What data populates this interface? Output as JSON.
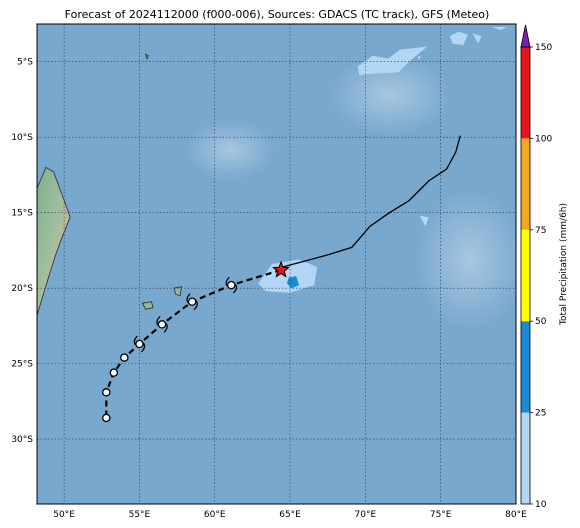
{
  "title": "Forecast of 2024112000 (f000-006), Sources: GDACS (TC track), GFS (Meteo)",
  "map": {
    "lon_range": [
      48.2,
      80.0
    ],
    "lat_range": [
      -34.3,
      -2.5
    ],
    "lon_ticks": [
      {
        "value": 50,
        "label": "50°E"
      },
      {
        "value": 55,
        "label": "55°E"
      },
      {
        "value": 60,
        "label": "60°E"
      },
      {
        "value": 65,
        "label": "65°E"
      },
      {
        "value": 70,
        "label": "70°E"
      },
      {
        "value": 75,
        "label": "75°E"
      },
      {
        "value": 80,
        "label": "80°E"
      }
    ],
    "lat_ticks": [
      {
        "value": -5,
        "label": "5°S"
      },
      {
        "value": -10,
        "label": "10°S"
      },
      {
        "value": -15,
        "label": "15°S"
      },
      {
        "value": -20,
        "label": "20°S"
      },
      {
        "value": -25,
        "label": "25°S"
      },
      {
        "value": -30,
        "label": "30°S"
      }
    ],
    "grid": true,
    "colors": {
      "ocean": "#79a8cf",
      "land": "#8fb79a",
      "track_past": "#000000",
      "track_forecast": "#000000",
      "current_position": "#e8141c"
    }
  },
  "colorbar": {
    "label": "Total Precipitation (mm/6h)",
    "ticks": [
      {
        "value": 10,
        "label": "10"
      },
      {
        "value": 25,
        "label": "25"
      },
      {
        "value": 50,
        "label": "50"
      },
      {
        "value": 75,
        "label": "75"
      },
      {
        "value": 100,
        "label": "100"
      },
      {
        "value": 150,
        "label": "150"
      }
    ],
    "bins": [
      {
        "from": 10,
        "to": 25,
        "color": "#b3d6f5"
      },
      {
        "from": 25,
        "to": 50,
        "color": "#1b8ad6"
      },
      {
        "from": 50,
        "to": 75,
        "color": "#ffff00"
      },
      {
        "from": 75,
        "to": 100,
        "color": "#f5a623"
      },
      {
        "from": 100,
        "to": 150,
        "color": "#e8141c"
      }
    ],
    "extend_color": "#7a1fb8"
  },
  "chart_data": {
    "type": "map",
    "past_track": [
      [
        76.3,
        -9.9
      ],
      [
        76.0,
        -11.0
      ],
      [
        75.4,
        -12.1
      ],
      [
        74.2,
        -12.9
      ],
      [
        72.9,
        -14.2
      ],
      [
        71.6,
        -15.0
      ],
      [
        70.3,
        -15.9
      ],
      [
        69.1,
        -17.3
      ],
      [
        67.5,
        -17.8
      ],
      [
        66.0,
        -18.2
      ],
      [
        64.5,
        -18.6
      ]
    ],
    "current_position": [
      64.4,
      -18.8
    ],
    "forecast_track": [
      [
        64.4,
        -18.8
      ],
      [
        61.1,
        -19.8
      ],
      [
        58.5,
        -20.9
      ],
      [
        56.5,
        -22.4
      ],
      [
        55.0,
        -23.7
      ],
      [
        54.0,
        -24.6
      ],
      [
        53.3,
        -25.6
      ],
      [
        52.8,
        -26.9
      ],
      [
        52.8,
        -28.6
      ]
    ],
    "forecast_symbols": [
      {
        "lon": 61.1,
        "lat": -19.8,
        "symbol": "cyclone"
      },
      {
        "lon": 58.5,
        "lat": -20.9,
        "symbol": "cyclone"
      },
      {
        "lon": 56.5,
        "lat": -22.4,
        "symbol": "cyclone"
      },
      {
        "lon": 55.0,
        "lat": -23.7,
        "symbol": "cyclone"
      },
      {
        "lon": 54.0,
        "lat": -24.6,
        "symbol": "low"
      },
      {
        "lon": 53.3,
        "lat": -25.6,
        "symbol": "low"
      },
      {
        "lon": 52.8,
        "lat": -26.9,
        "symbol": "low"
      },
      {
        "lon": 52.8,
        "lat": -28.6,
        "symbol": "low"
      }
    ],
    "precipitation_areas": [
      {
        "color": "#b3d6f5",
        "polygon": [
          [
            62.9,
            -19.7
          ],
          [
            63.8,
            -18.4
          ],
          [
            65.6,
            -18.1
          ],
          [
            66.8,
            -18.6
          ],
          [
            66.6,
            -19.8
          ],
          [
            65.0,
            -20.3
          ],
          [
            63.4,
            -20.2
          ]
        ]
      },
      {
        "color": "#1b8ad6",
        "polygon": [
          [
            64.9,
            -19.3
          ],
          [
            65.4,
            -19.2
          ],
          [
            65.6,
            -19.8
          ],
          [
            65.1,
            -20.0
          ],
          [
            64.8,
            -19.7
          ]
        ]
      },
      {
        "color": "#b3d6f5",
        "polygon": [
          [
            69.5,
            -5.3
          ],
          [
            70.5,
            -4.6
          ],
          [
            71.5,
            -4.8
          ],
          [
            72.3,
            -4.2
          ],
          [
            74.1,
            -4.0
          ],
          [
            72.9,
            -5.0
          ],
          [
            72.2,
            -5.7
          ],
          [
            70.4,
            -5.8
          ],
          [
            69.6,
            -5.9
          ]
        ]
      },
      {
        "color": "#b3d6f5",
        "polygon": [
          [
            75.6,
            -3.3
          ],
          [
            76.2,
            -3.0
          ],
          [
            76.8,
            -3.2
          ],
          [
            76.5,
            -3.9
          ],
          [
            75.8,
            -3.8
          ]
        ]
      },
      {
        "color": "#b3d6f5",
        "polygon": [
          [
            77.1,
            -3.1
          ],
          [
            77.7,
            -3.3
          ],
          [
            77.5,
            -3.8
          ]
        ]
      },
      {
        "color": "#b3d6f5",
        "polygon": [
          [
            78.4,
            -2.7
          ],
          [
            79.4,
            -2.7
          ],
          [
            79.0,
            -2.9
          ]
        ]
      },
      {
        "color": "#b3d6f5",
        "polygon": [
          [
            73.6,
            -15.2
          ],
          [
            74.2,
            -15.3
          ],
          [
            74.0,
            -15.9
          ]
        ]
      },
      {
        "color": "#b3d6f5",
        "polygon": [
          [
            73.5,
            -4.6
          ],
          [
            73.7,
            -4.7
          ],
          [
            73.5,
            -4.9
          ]
        ]
      }
    ],
    "land_areas": [
      {
        "name": "madagascar",
        "polygon": [
          [
            48.2,
            -13.4
          ],
          [
            48.8,
            -12.0
          ],
          [
            49.3,
            -12.3
          ],
          [
            49.9,
            -13.9
          ],
          [
            50.4,
            -15.3
          ],
          [
            49.8,
            -16.8
          ],
          [
            49.4,
            -17.9
          ],
          [
            48.9,
            -19.5
          ],
          [
            48.2,
            -21.8
          ]
        ]
      },
      {
        "name": "reunion",
        "polygon": [
          [
            55.2,
            -21.0
          ],
          [
            55.8,
            -20.9
          ],
          [
            55.9,
            -21.3
          ],
          [
            55.4,
            -21.4
          ]
        ]
      },
      {
        "name": "mauritius",
        "polygon": [
          [
            57.3,
            -20.0
          ],
          [
            57.8,
            -19.9
          ],
          [
            57.7,
            -20.5
          ],
          [
            57.4,
            -20.4
          ]
        ]
      },
      {
        "name": "rodrigues",
        "polygon": [
          [
            63.3,
            -19.6
          ],
          [
            63.6,
            -19.6
          ],
          [
            63.5,
            -19.8
          ]
        ]
      },
      {
        "name": "seychelles",
        "polygon": [
          [
            55.4,
            -4.5
          ],
          [
            55.6,
            -4.6
          ],
          [
            55.5,
            -4.8
          ]
        ]
      }
    ]
  }
}
